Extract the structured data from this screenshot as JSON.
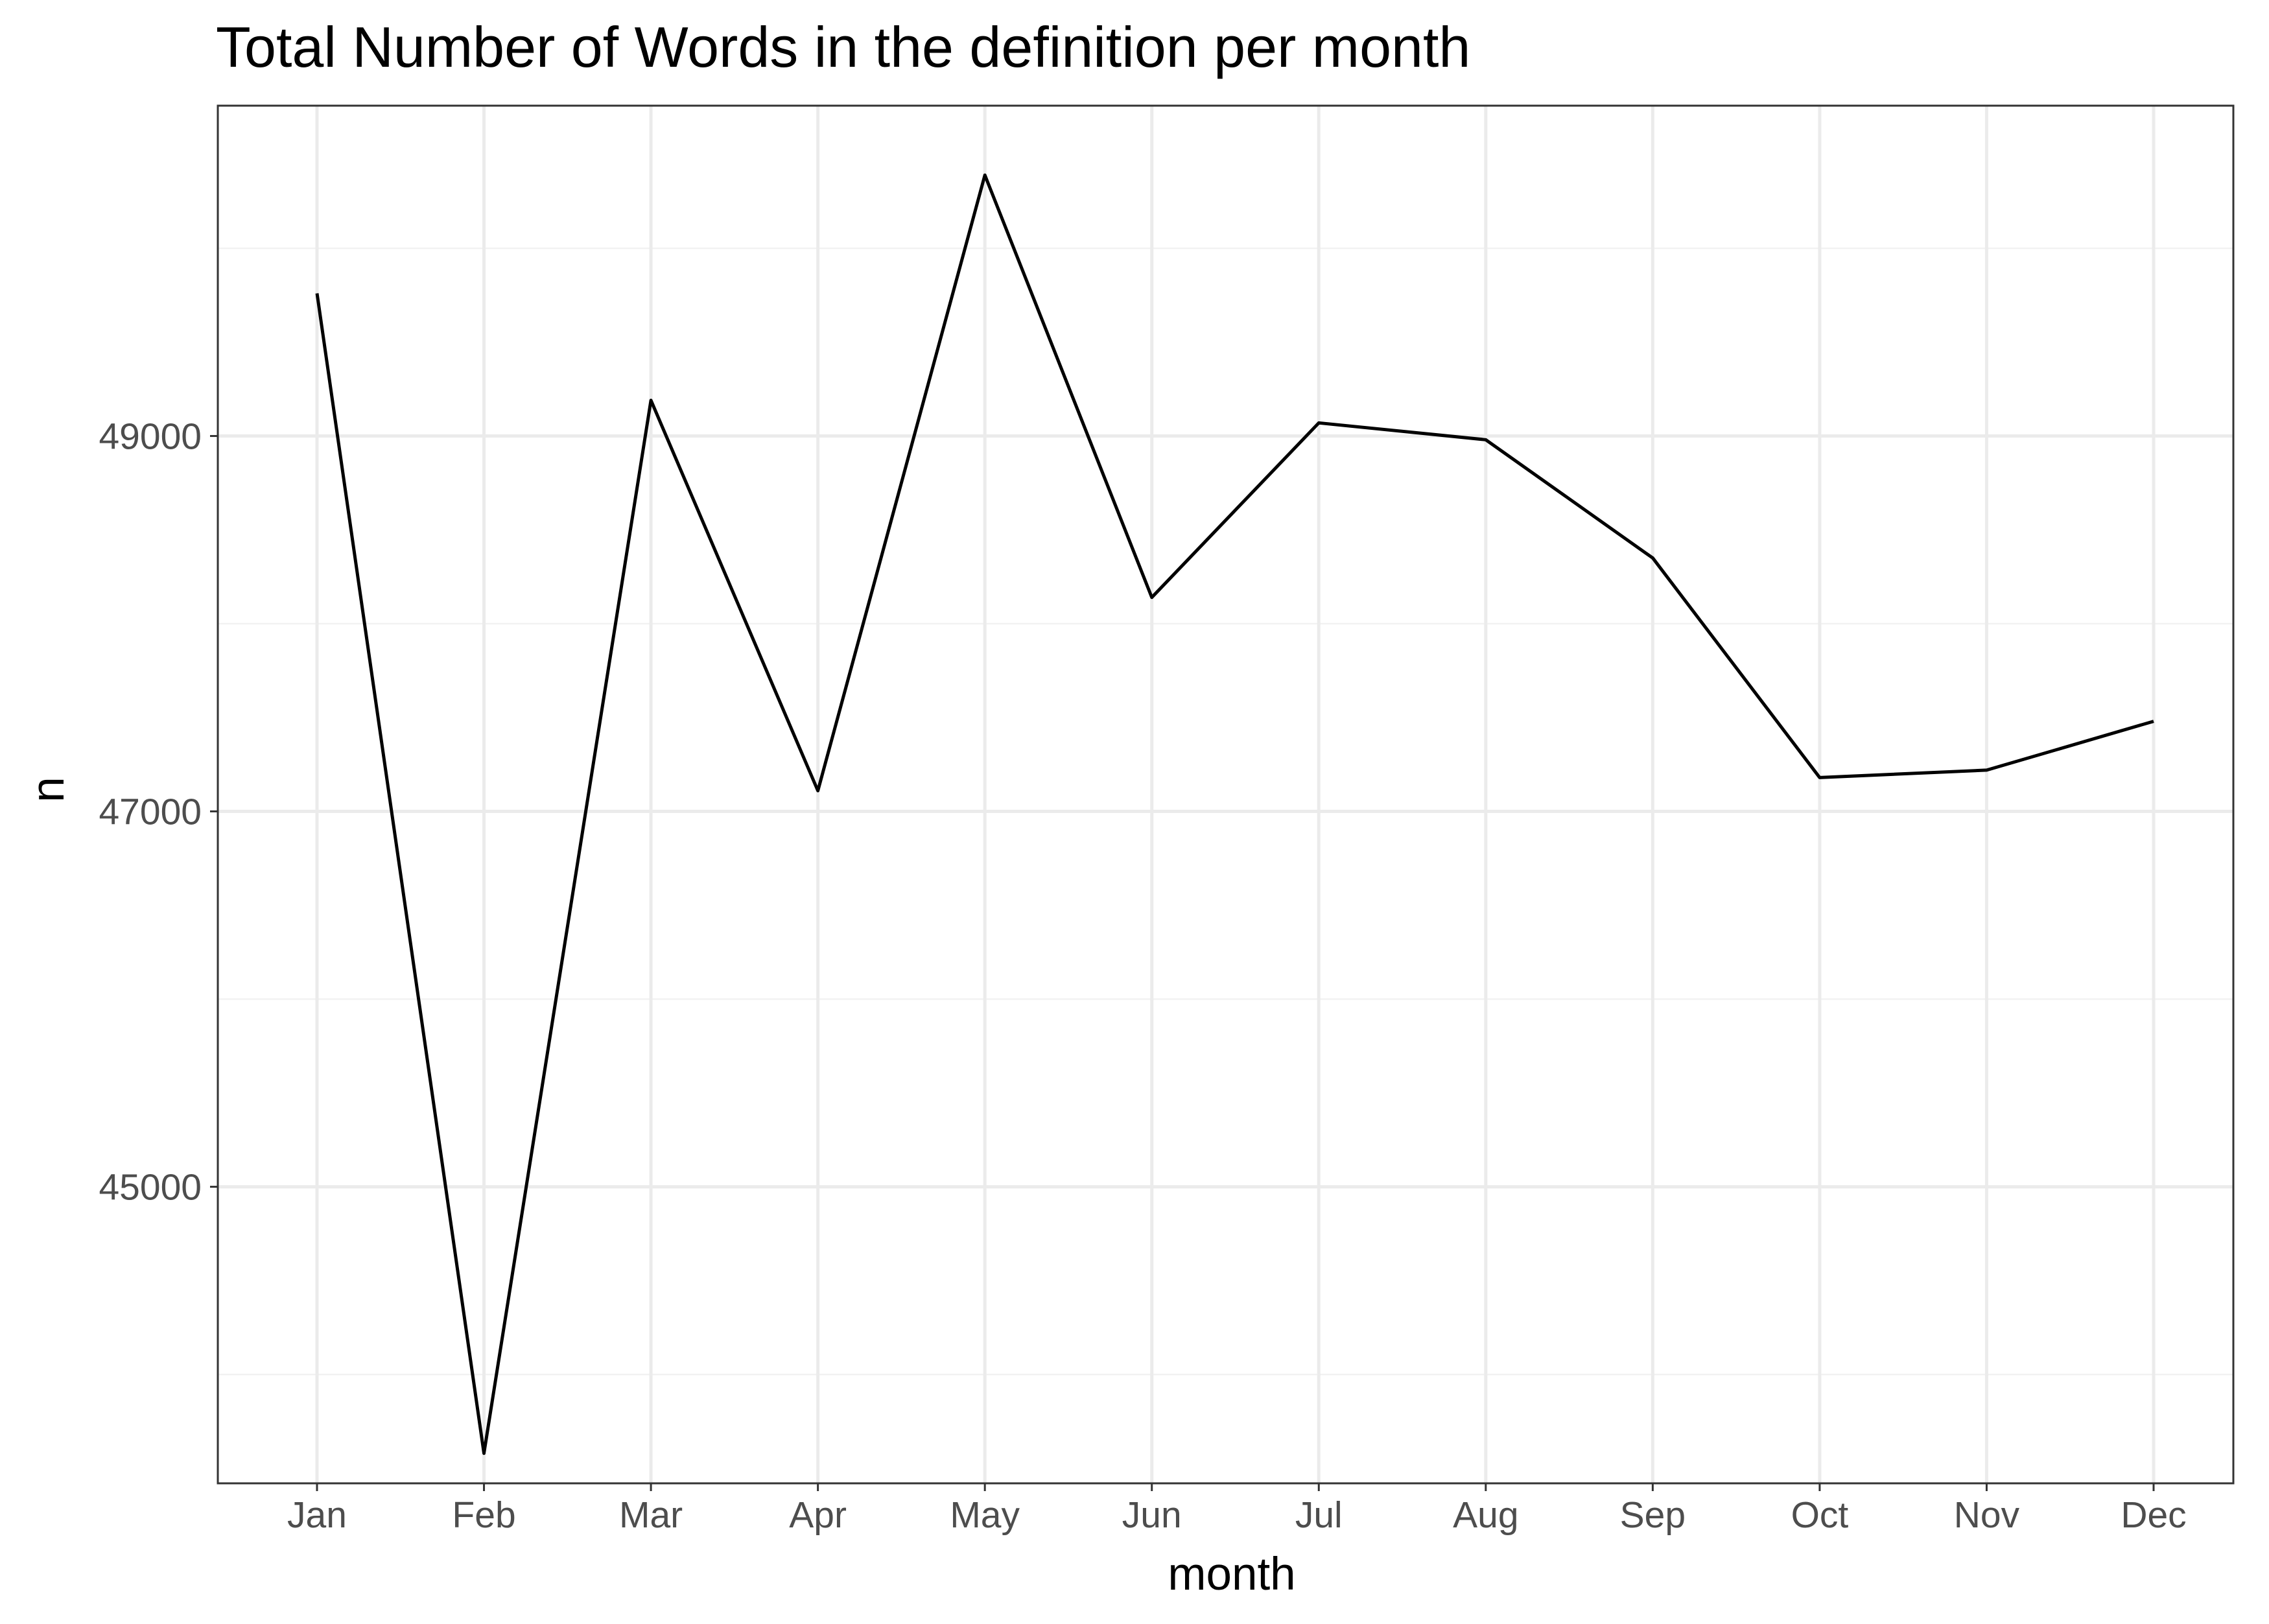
{
  "chart_data": {
    "type": "line",
    "title": "Total Number of Words in the definition per month",
    "xlabel": "month",
    "ylabel": "n",
    "categories": [
      "Jan",
      "Feb",
      "Mar",
      "Apr",
      "May",
      "Jun",
      "Jul",
      "Aug",
      "Sep",
      "Oct",
      "Nov",
      "Dec"
    ],
    "series": [
      {
        "name": "n",
        "values": [
          49760,
          43580,
          49190,
          47110,
          50390,
          48140,
          49070,
          48980,
          48350,
          47180,
          47220,
          47480
        ]
      }
    ],
    "ylim": [
      43420,
      50760
    ],
    "y_major_ticks": [
      45000,
      47000,
      49000
    ],
    "y_minor_ticks": [
      44000,
      46000,
      48000,
      50000
    ],
    "y_tick_labels": [
      "45000",
      "47000",
      "49000"
    ],
    "grid": true,
    "legend": "none",
    "colors": {
      "line": "#000000",
      "grid_major": "#ebebeb",
      "grid_minor": "#f2f2f2",
      "panel_border": "#333333",
      "tick_label": "#4d4d4d",
      "background": "#ffffff"
    }
  }
}
